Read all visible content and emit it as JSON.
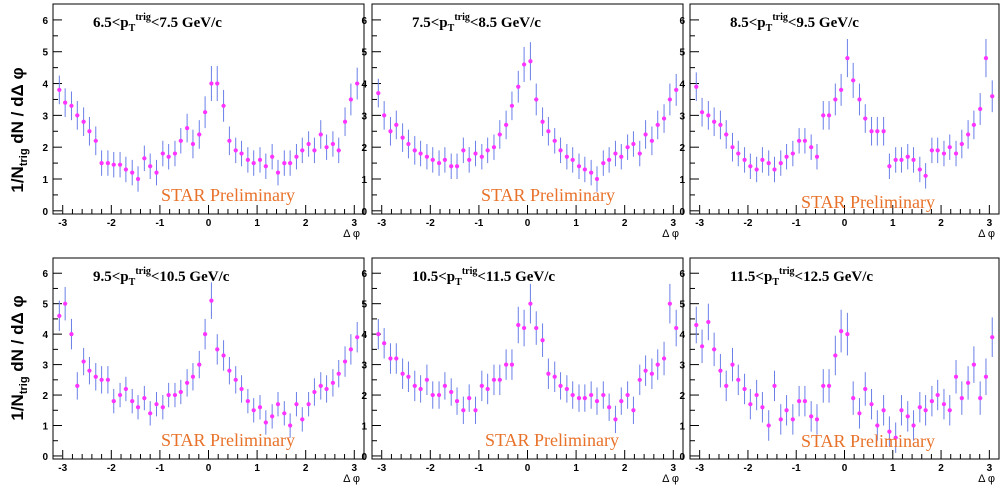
{
  "figure": {
    "ylabel_prefix": "1/N",
    "ylabel_sub": "trig",
    "ylabel_suffix": " dN / dΔ φ",
    "xlabel": "Δ φ",
    "watermark": "STAR Preliminary",
    "marker_color": "#ff33ff",
    "error_color": "#6a7fe8",
    "watermark_color": "#e8722a"
  },
  "chart_data": [
    {
      "type": "scatter",
      "title_lo": "6.5<p",
      "title_sub": "T",
      "title_sup": "trig",
      "title_hi": "<7.5 GeV/c",
      "xlabel": "Δ φ",
      "xlim": [
        -3.2,
        3.2
      ],
      "ylim": [
        -0.1,
        6.5
      ],
      "yticks": [
        0,
        1,
        2,
        3,
        4,
        5,
        6
      ],
      "xticks": [
        -3,
        -2,
        -1,
        0,
        1,
        2,
        3
      ],
      "x": [
        -3.07,
        -2.95,
        -2.82,
        -2.7,
        -2.57,
        -2.45,
        -2.32,
        -2.2,
        -2.07,
        -1.95,
        -1.82,
        -1.7,
        -1.57,
        -1.45,
        -1.32,
        -1.2,
        -1.07,
        -0.94,
        -0.82,
        -0.69,
        -0.57,
        -0.44,
        -0.32,
        -0.19,
        -0.07,
        0.06,
        0.18,
        0.31,
        0.43,
        0.56,
        0.68,
        0.81,
        0.93,
        1.06,
        1.18,
        1.31,
        1.43,
        1.56,
        1.68,
        1.81,
        1.93,
        2.06,
        2.18,
        2.31,
        2.43,
        2.56,
        2.68,
        2.81,
        2.93,
        3.06
      ],
      "y": [
        3.8,
        3.4,
        3.3,
        3.0,
        2.8,
        2.5,
        2.2,
        1.5,
        1.5,
        1.45,
        1.45,
        1.3,
        1.2,
        1.0,
        1.65,
        1.4,
        1.2,
        1.8,
        1.7,
        1.8,
        2.2,
        2.6,
        2.1,
        2.4,
        3.1,
        4.0,
        4.0,
        3.3,
        2.2,
        1.9,
        1.8,
        1.6,
        1.5,
        1.6,
        1.4,
        1.7,
        1.2,
        1.5,
        1.5,
        1.7,
        1.9,
        2.1,
        1.9,
        2.4,
        2.0,
        2.1,
        1.9,
        2.8,
        3.5,
        4.0
      ],
      "err": [
        0.45,
        0.45,
        0.45,
        0.45,
        0.45,
        0.45,
        0.45,
        0.4,
        0.4,
        0.4,
        0.4,
        0.4,
        0.4,
        0.4,
        0.4,
        0.4,
        0.4,
        0.4,
        0.4,
        0.4,
        0.4,
        0.45,
        0.45,
        0.45,
        0.5,
        0.55,
        0.55,
        0.5,
        0.45,
        0.4,
        0.4,
        0.4,
        0.4,
        0.4,
        0.4,
        0.4,
        0.4,
        0.4,
        0.4,
        0.4,
        0.4,
        0.4,
        0.4,
        0.45,
        0.4,
        0.4,
        0.4,
        0.45,
        0.5,
        0.5
      ]
    },
    {
      "type": "scatter",
      "title_lo": "7.5<p",
      "title_sub": "T",
      "title_sup": "trig",
      "title_hi": "<8.5 GeV/c",
      "xlabel": "Δ φ",
      "xlim": [
        -3.2,
        3.2
      ],
      "ylim": [
        -0.1,
        6.5
      ],
      "yticks": [
        0,
        1,
        2,
        3,
        4,
        5,
        6
      ],
      "xticks": [
        -3,
        -2,
        -1,
        0,
        1,
        2,
        3
      ],
      "x": [
        -3.07,
        -2.95,
        -2.82,
        -2.7,
        -2.57,
        -2.45,
        -2.32,
        -2.2,
        -2.07,
        -1.95,
        -1.82,
        -1.7,
        -1.57,
        -1.45,
        -1.32,
        -1.2,
        -1.07,
        -0.94,
        -0.82,
        -0.69,
        -0.57,
        -0.44,
        -0.32,
        -0.19,
        -0.07,
        0.06,
        0.18,
        0.31,
        0.43,
        0.56,
        0.68,
        0.81,
        0.93,
        1.06,
        1.18,
        1.31,
        1.43,
        1.56,
        1.68,
        1.81,
        1.93,
        2.06,
        2.18,
        2.31,
        2.43,
        2.56,
        2.68,
        2.81,
        2.93,
        3.06
      ],
      "y": [
        3.7,
        3.0,
        2.5,
        2.7,
        2.3,
        2.1,
        1.9,
        1.8,
        1.7,
        1.6,
        1.5,
        1.6,
        1.4,
        1.4,
        1.9,
        1.6,
        1.8,
        1.7,
        1.9,
        2.0,
        2.4,
        2.7,
        3.3,
        3.9,
        4.6,
        4.7,
        3.5,
        2.8,
        2.5,
        2.2,
        1.9,
        1.7,
        1.6,
        1.4,
        1.3,
        1.2,
        1.0,
        1.5,
        1.6,
        1.8,
        1.7,
        2.0,
        2.1,
        1.8,
        2.4,
        2.2,
        2.7,
        2.9,
        3.5,
        3.8
      ],
      "err": [
        0.45,
        0.45,
        0.45,
        0.45,
        0.45,
        0.45,
        0.45,
        0.4,
        0.4,
        0.4,
        0.4,
        0.4,
        0.4,
        0.4,
        0.4,
        0.4,
        0.4,
        0.4,
        0.4,
        0.4,
        0.45,
        0.45,
        0.45,
        0.5,
        0.55,
        0.6,
        0.5,
        0.45,
        0.45,
        0.4,
        0.4,
        0.4,
        0.4,
        0.4,
        0.4,
        0.4,
        0.4,
        0.4,
        0.4,
        0.4,
        0.4,
        0.4,
        0.4,
        0.4,
        0.45,
        0.45,
        0.45,
        0.45,
        0.5,
        0.5
      ]
    },
    {
      "type": "scatter",
      "title_lo": "8.5<p",
      "title_sub": "T",
      "title_sup": "trig",
      "title_hi": "<9.5 GeV/c",
      "xlabel": "Δ φ",
      "xlim": [
        -3.2,
        3.2
      ],
      "ylim": [
        -0.1,
        6.5
      ],
      "yticks": [
        0,
        1,
        2,
        3,
        4,
        5,
        6
      ],
      "xticks": [
        -3,
        -2,
        -1,
        0,
        1,
        2,
        3
      ],
      "x": [
        -3.07,
        -2.95,
        -2.82,
        -2.7,
        -2.57,
        -2.45,
        -2.32,
        -2.2,
        -2.07,
        -1.95,
        -1.82,
        -1.7,
        -1.57,
        -1.45,
        -1.32,
        -1.2,
        -1.07,
        -0.94,
        -0.82,
        -0.69,
        -0.57,
        -0.44,
        -0.32,
        -0.19,
        -0.07,
        0.06,
        0.18,
        0.31,
        0.43,
        0.56,
        0.68,
        0.81,
        0.93,
        1.06,
        1.18,
        1.31,
        1.43,
        1.56,
        1.68,
        1.81,
        1.93,
        2.06,
        2.18,
        2.31,
        2.43,
        2.56,
        2.68,
        2.81,
        2.93,
        3.06
      ],
      "y": [
        3.9,
        3.1,
        3.0,
        2.8,
        2.7,
        2.4,
        2.0,
        1.8,
        1.6,
        1.4,
        1.3,
        1.6,
        1.5,
        1.3,
        1.5,
        1.7,
        1.8,
        2.2,
        2.2,
        2.0,
        1.7,
        3.0,
        3.0,
        3.5,
        3.8,
        4.8,
        4.1,
        3.5,
        2.9,
        2.5,
        2.5,
        2.5,
        1.4,
        1.6,
        1.6,
        1.7,
        1.6,
        1.3,
        1.1,
        1.9,
        1.9,
        1.8,
        2.0,
        1.8,
        2.1,
        2.4,
        2.7,
        3.2,
        4.8,
        3.6
      ],
      "err": [
        0.45,
        0.45,
        0.45,
        0.45,
        0.45,
        0.45,
        0.45,
        0.4,
        0.4,
        0.4,
        0.4,
        0.4,
        0.4,
        0.4,
        0.4,
        0.4,
        0.4,
        0.4,
        0.4,
        0.4,
        0.4,
        0.45,
        0.45,
        0.5,
        0.5,
        0.6,
        0.55,
        0.5,
        0.45,
        0.45,
        0.45,
        0.45,
        0.4,
        0.4,
        0.4,
        0.4,
        0.4,
        0.4,
        0.4,
        0.4,
        0.4,
        0.4,
        0.4,
        0.4,
        0.45,
        0.45,
        0.45,
        0.5,
        0.6,
        0.5
      ]
    },
    {
      "type": "scatter",
      "title_lo": "9.5<p",
      "title_sub": "T",
      "title_sup": "trig",
      "title_hi": "<10.5 GeV/c",
      "xlabel": "Δ φ",
      "xlim": [
        -3.2,
        3.2
      ],
      "ylim": [
        -0.1,
        6.5
      ],
      "yticks": [
        0,
        1,
        2,
        3,
        4,
        5,
        6
      ],
      "xticks": [
        -3,
        -2,
        -1,
        0,
        1,
        2,
        3
      ],
      "x": [
        -3.07,
        -2.95,
        -2.82,
        -2.7,
        -2.57,
        -2.45,
        -2.32,
        -2.2,
        -2.07,
        -1.95,
        -1.82,
        -1.7,
        -1.57,
        -1.45,
        -1.32,
        -1.2,
        -1.07,
        -0.94,
        -0.82,
        -0.69,
        -0.57,
        -0.44,
        -0.32,
        -0.19,
        -0.07,
        0.06,
        0.18,
        0.31,
        0.43,
        0.56,
        0.68,
        0.81,
        0.93,
        1.06,
        1.18,
        1.31,
        1.43,
        1.56,
        1.68,
        1.81,
        1.93,
        2.06,
        2.18,
        2.31,
        2.43,
        2.56,
        2.68,
        2.81,
        2.93,
        3.06
      ],
      "y": [
        4.6,
        5.0,
        4.0,
        2.3,
        3.1,
        2.8,
        2.6,
        2.5,
        2.5,
        1.8,
        2.0,
        2.2,
        1.8,
        1.6,
        1.9,
        1.4,
        1.7,
        1.6,
        2.0,
        2.0,
        2.1,
        2.4,
        2.6,
        3.0,
        4.0,
        5.1,
        3.5,
        3.3,
        2.8,
        2.5,
        2.2,
        1.8,
        1.5,
        1.6,
        1.1,
        1.3,
        1.7,
        1.4,
        1.0,
        1.7,
        1.2,
        1.7,
        2.1,
        2.3,
        2.2,
        2.4,
        2.7,
        3.1,
        3.5,
        3.9
      ],
      "err": [
        0.5,
        0.55,
        0.5,
        0.45,
        0.45,
        0.45,
        0.45,
        0.45,
        0.45,
        0.4,
        0.4,
        0.4,
        0.4,
        0.4,
        0.4,
        0.4,
        0.4,
        0.4,
        0.4,
        0.4,
        0.4,
        0.45,
        0.45,
        0.45,
        0.5,
        0.6,
        0.5,
        0.5,
        0.45,
        0.45,
        0.45,
        0.4,
        0.4,
        0.4,
        0.4,
        0.4,
        0.4,
        0.4,
        0.4,
        0.4,
        0.4,
        0.4,
        0.45,
        0.45,
        0.45,
        0.45,
        0.45,
        0.5,
        0.5,
        0.5
      ]
    },
    {
      "type": "scatter",
      "title_lo": "10.5<p",
      "title_sub": "T",
      "title_sup": "trig",
      "title_hi": "<11.5 GeV/c",
      "xlabel": "Δ φ",
      "xlim": [
        -3.2,
        3.2
      ],
      "ylim": [
        -0.1,
        6.5
      ],
      "yticks": [
        0,
        1,
        2,
        3,
        4,
        5,
        6
      ],
      "xticks": [
        -3,
        -2,
        -1,
        0,
        1,
        2,
        3
      ],
      "x": [
        -3.07,
        -2.95,
        -2.82,
        -2.7,
        -2.57,
        -2.45,
        -2.32,
        -2.2,
        -2.07,
        -1.95,
        -1.82,
        -1.7,
        -1.57,
        -1.45,
        -1.32,
        -1.2,
        -1.07,
        -0.94,
        -0.82,
        -0.69,
        -0.57,
        -0.44,
        -0.32,
        -0.19,
        -0.07,
        0.06,
        0.18,
        0.31,
        0.43,
        0.56,
        0.68,
        0.81,
        0.93,
        1.06,
        1.18,
        1.31,
        1.43,
        1.56,
        1.68,
        1.81,
        1.93,
        2.06,
        2.18,
        2.31,
        2.43,
        2.56,
        2.68,
        2.81,
        2.93,
        3.06
      ],
      "y": [
        4.0,
        3.7,
        3.2,
        3.2,
        2.7,
        2.6,
        2.3,
        2.2,
        2.5,
        2.0,
        2.0,
        2.3,
        2.1,
        1.8,
        1.5,
        1.9,
        1.5,
        2.3,
        2.2,
        2.5,
        2.5,
        3.0,
        3.0,
        4.3,
        4.2,
        5.0,
        4.2,
        3.8,
        2.7,
        2.6,
        2.3,
        2.2,
        2.0,
        1.9,
        1.9,
        2.0,
        1.8,
        2.0,
        1.6,
        1.2,
        1.8,
        2.0,
        1.5,
        2.5,
        2.8,
        2.7,
        3.0,
        3.2,
        5.0,
        4.2
      ],
      "err": [
        0.5,
        0.5,
        0.5,
        0.5,
        0.5,
        0.5,
        0.5,
        0.45,
        0.5,
        0.45,
        0.45,
        0.45,
        0.45,
        0.45,
        0.45,
        0.45,
        0.45,
        0.5,
        0.5,
        0.5,
        0.5,
        0.5,
        0.5,
        0.6,
        0.6,
        0.65,
        0.55,
        0.55,
        0.5,
        0.5,
        0.45,
        0.45,
        0.45,
        0.45,
        0.45,
        0.45,
        0.45,
        0.45,
        0.45,
        0.45,
        0.45,
        0.45,
        0.45,
        0.5,
        0.5,
        0.5,
        0.5,
        0.55,
        0.65,
        0.6
      ]
    },
    {
      "type": "scatter",
      "title_lo": "11.5<p",
      "title_sub": "T",
      "title_sup": "trig",
      "title_hi": "<12.5 GeV/c",
      "xlabel": "Δ φ",
      "xlim": [
        -3.2,
        3.2
      ],
      "ylim": [
        -0.1,
        6.5
      ],
      "yticks": [
        0,
        1,
        2,
        3,
        4,
        5,
        6
      ],
      "xticks": [
        -3,
        -2,
        -1,
        0,
        1,
        2,
        3
      ],
      "x": [
        -3.07,
        -2.95,
        -2.82,
        -2.7,
        -2.57,
        -2.45,
        -2.32,
        -2.2,
        -2.07,
        -1.95,
        -1.82,
        -1.7,
        -1.57,
        -1.45,
        -1.32,
        -1.2,
        -1.07,
        -0.94,
        -0.82,
        -0.69,
        -0.57,
        -0.44,
        -0.32,
        -0.19,
        -0.07,
        0.06,
        0.18,
        0.31,
        0.43,
        0.56,
        0.68,
        0.81,
        0.93,
        1.06,
        1.18,
        1.31,
        1.43,
        1.56,
        1.68,
        1.81,
        1.93,
        2.06,
        2.18,
        2.31,
        2.43,
        2.56,
        2.68,
        2.81,
        2.93,
        3.06
      ],
      "y": [
        4.3,
        3.6,
        4.4,
        3.5,
        2.8,
        2.3,
        3.0,
        2.5,
        2.2,
        1.7,
        2.0,
        1.6,
        1.0,
        2.3,
        1.2,
        1.5,
        1.2,
        1.8,
        1.8,
        1.3,
        1.2,
        2.3,
        2.3,
        3.3,
        4.1,
        4.0,
        1.9,
        1.4,
        2.2,
        1.7,
        1.0,
        1.5,
        0.8,
        0.6,
        1.5,
        1.3,
        1.0,
        1.6,
        1.5,
        1.8,
        2.0,
        1.7,
        1.5,
        2.6,
        1.9,
        2.4,
        3.0,
        1.9,
        2.6,
        3.9
      ],
      "err": [
        0.6,
        0.55,
        0.6,
        0.55,
        0.55,
        0.5,
        0.55,
        0.5,
        0.5,
        0.5,
        0.5,
        0.5,
        0.5,
        0.5,
        0.5,
        0.5,
        0.5,
        0.5,
        0.5,
        0.5,
        0.5,
        0.55,
        0.55,
        0.65,
        0.7,
        0.7,
        0.55,
        0.5,
        0.55,
        0.5,
        0.5,
        0.5,
        0.5,
        0.5,
        0.5,
        0.5,
        0.5,
        0.5,
        0.5,
        0.5,
        0.5,
        0.5,
        0.5,
        0.55,
        0.55,
        0.55,
        0.6,
        0.55,
        0.6,
        0.65
      ]
    }
  ]
}
